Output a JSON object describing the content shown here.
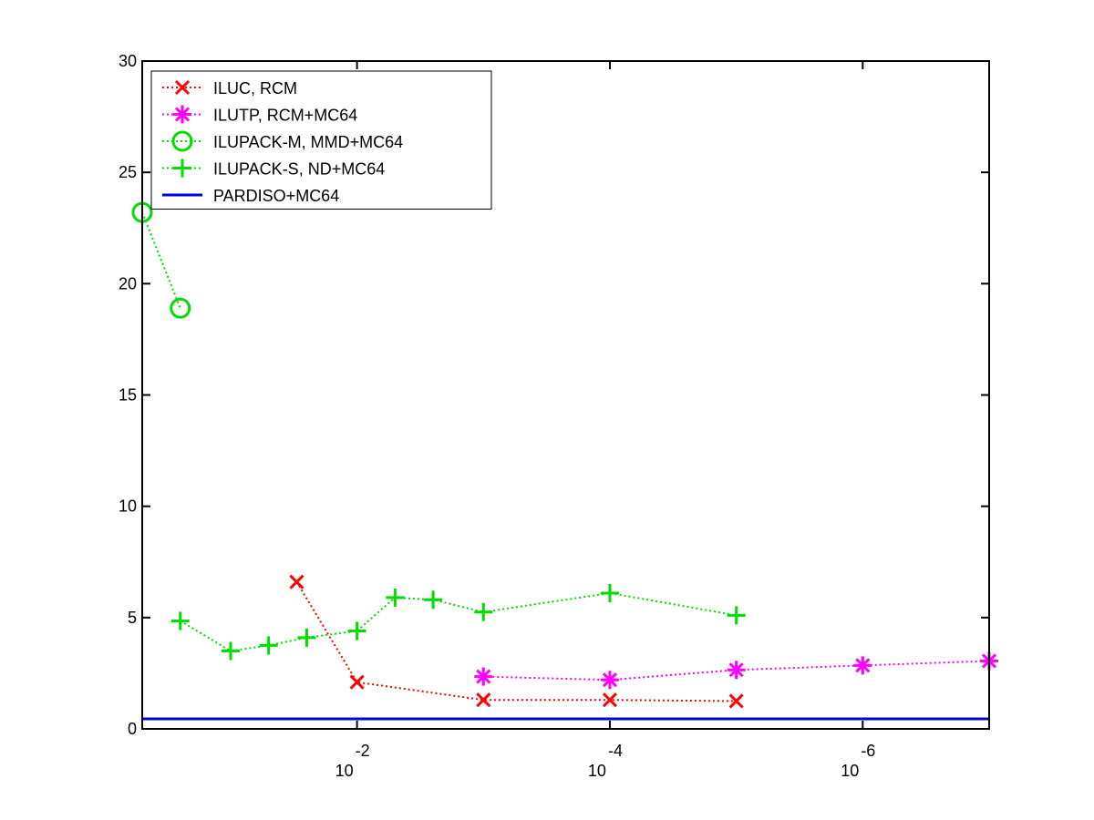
{
  "chart_data": {
    "type": "line",
    "x_scale": "log",
    "x_reversed": true,
    "xlim": [
      0.5,
      1e-07
    ],
    "ylim": [
      0,
      30
    ],
    "y_ticks": [
      0,
      5,
      10,
      15,
      20,
      25,
      30
    ],
    "x_ticks": [
      {
        "value": 0.01,
        "base": "10",
        "exp": "-2"
      },
      {
        "value": 0.0001,
        "base": "10",
        "exp": "-4"
      },
      {
        "value": 1e-06,
        "base": "10",
        "exp": "-6"
      }
    ],
    "legend_position": "top-left",
    "series": [
      {
        "name": "ILUC, RCM",
        "color": "#ff0000",
        "marker": "x",
        "line_style": "dotted",
        "x": [
          0.03,
          0.01,
          0.001,
          0.0001,
          1e-05
        ],
        "y": [
          6.6,
          2.1,
          1.3,
          1.3,
          1.25
        ]
      },
      {
        "name": "ILUTP, RCM+MC64",
        "color": "#ff00ff",
        "marker": "star",
        "line_style": "dotted",
        "x": [
          0.001,
          0.0001,
          1e-05,
          1e-06,
          1e-07
        ],
        "y": [
          2.35,
          2.2,
          2.65,
          2.85,
          3.05
        ]
      },
      {
        "name": "ILUPACK-M, MMD+MC64",
        "color": "#00dd00",
        "marker": "circle",
        "line_style": "dotted",
        "x": [
          0.5,
          0.25
        ],
        "y": [
          23.2,
          18.9
        ]
      },
      {
        "name": "ILUPACK-S, ND+MC64",
        "color": "#00dd00",
        "marker": "plus",
        "line_style": "dotted",
        "x": [
          0.25,
          0.1,
          0.05,
          0.025,
          0.01,
          0.005,
          0.0025,
          0.001,
          0.0001,
          1e-05
        ],
        "y": [
          4.85,
          3.5,
          3.75,
          4.1,
          4.4,
          5.9,
          5.8,
          5.25,
          6.1,
          5.1
        ]
      },
      {
        "name": "PARDISO+MC64",
        "color": "#0000dd",
        "marker": "none",
        "line_style": "solid",
        "x": [
          0.5,
          1e-07
        ],
        "y": [
          0.45,
          0.45
        ]
      }
    ]
  }
}
